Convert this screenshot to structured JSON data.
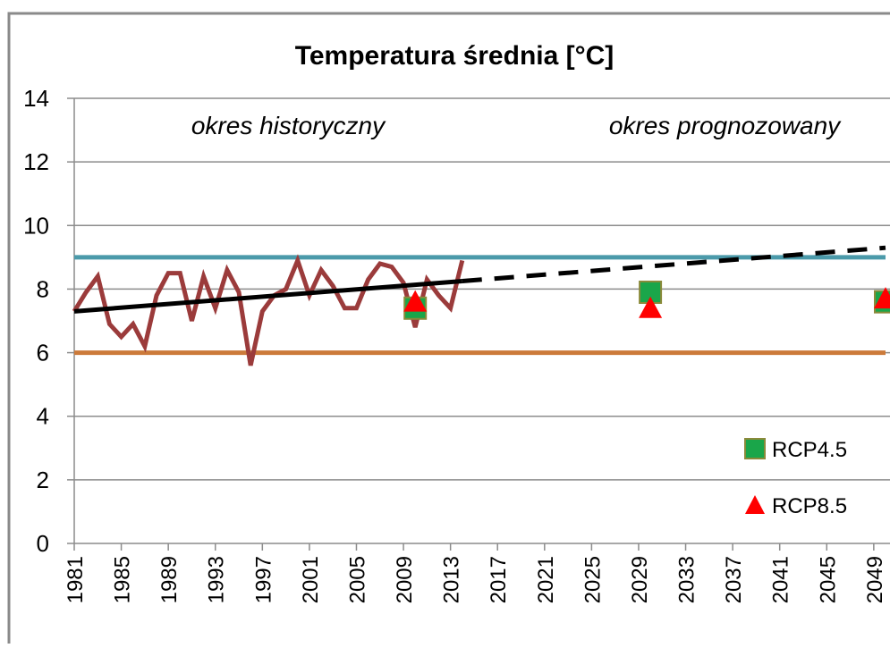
{
  "chart_data": {
    "type": "line",
    "title": "Temperatura średnia [°C]",
    "annotations": [
      "okres historyczny",
      "okres prognozowany"
    ],
    "xlim": [
      1981,
      2050
    ],
    "xticks": [
      1981,
      1985,
      1989,
      1993,
      1997,
      2001,
      2005,
      2009,
      2013,
      2017,
      2021,
      2025,
      2029,
      2033,
      2037,
      2041,
      2045,
      2049
    ],
    "ylim": [
      0,
      14
    ],
    "yticks": [
      0,
      2,
      4,
      6,
      8,
      10,
      12,
      14
    ],
    "grid": true,
    "series": [
      {
        "color": "#4b9aaa",
        "style": "line",
        "x": [
          1981,
          2050
        ],
        "values": [
          9,
          9
        ]
      },
      {
        "color": "#cc7a3a",
        "style": "line",
        "x": [
          1981,
          2050
        ],
        "values": [
          6,
          6
        ]
      },
      {
        "color": "#9b3b3b",
        "style": "line",
        "x": [
          1981,
          1982,
          1983,
          1984,
          1985,
          1986,
          1987,
          1988,
          1989,
          1990,
          1991,
          1992,
          1993,
          1994,
          1995,
          1996,
          1997,
          1998,
          1999,
          2000,
          2001,
          2002,
          2003,
          2004,
          2005,
          2006,
          2007,
          2008,
          2009,
          2010,
          2011,
          2012,
          2013,
          2014
        ],
        "values": [
          7.3,
          7.9,
          8.4,
          6.9,
          6.5,
          6.9,
          6.2,
          7.8,
          8.5,
          8.5,
          7.0,
          8.4,
          7.4,
          8.6,
          7.9,
          5.6,
          7.3,
          7.8,
          8.0,
          8.9,
          7.8,
          8.6,
          8.1,
          7.4,
          7.4,
          8.3,
          8.8,
          8.7,
          8.2,
          6.8,
          8.3,
          7.8,
          7.4,
          8.9
        ]
      },
      {
        "color": "#000000",
        "style": "line",
        "x": [
          1981,
          2014
        ],
        "values": [
          7.3,
          8.25
        ]
      },
      {
        "color": "#000000",
        "style": "dashed",
        "x": [
          2014,
          2050
        ],
        "values": [
          8.25,
          9.3
        ]
      },
      {
        "name": "RCP4.5",
        "color": "#1aa64a",
        "style": "square",
        "x": [
          2010,
          2030,
          2050
        ],
        "values": [
          7.4,
          7.9,
          7.6
        ]
      },
      {
        "name": "RCP8.5",
        "color": "#ff0000",
        "style": "triangle",
        "x": [
          2010,
          2030,
          2050
        ],
        "values": [
          7.6,
          7.4,
          7.7
        ]
      }
    ]
  }
}
